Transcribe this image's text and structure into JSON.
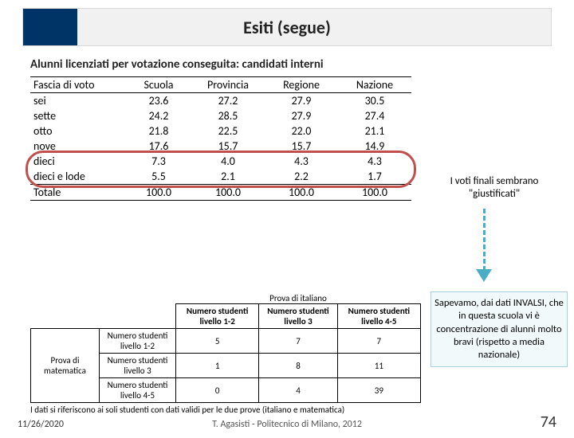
{
  "title": "Esiti (segue)",
  "subhead": "Alunni licenziati per votazione conseguita: candidati interni",
  "table1": {
    "headers": [
      "Fascia di voto",
      "Scuola",
      "Provincia",
      "Regione",
      "Nazione"
    ],
    "rows": [
      {
        "label": "sei",
        "vals": [
          "23.6",
          "27.2",
          "27.9",
          "30.5"
        ]
      },
      {
        "label": "sette",
        "vals": [
          "24.2",
          "28.5",
          "27.9",
          "27.4"
        ]
      },
      {
        "label": "otto",
        "vals": [
          "21.8",
          "22.5",
          "22.0",
          "21.1"
        ]
      },
      {
        "label": "nove",
        "vals": [
          "17.6",
          "15.7",
          "15.7",
          "14.9"
        ]
      },
      {
        "label": "dieci",
        "vals": [
          "7.3",
          "4.0",
          "4.3",
          "4.3"
        ]
      },
      {
        "label": "dieci e lode",
        "vals": [
          "5.5",
          "2.1",
          "2.2",
          "1.7"
        ]
      },
      {
        "label": "Totale",
        "vals": [
          "100.0",
          "100.0",
          "100.0",
          "100.0"
        ]
      }
    ],
    "highlight_rows": [
      4,
      5
    ],
    "highlight_color": "#c0504d"
  },
  "note1_lines": [
    "I voti finali sembrano",
    "\"giustificati\""
  ],
  "arrow_color": "#4bacc6",
  "table2": {
    "top_group": "Prova di italiano",
    "col_headers": [
      "Numero studenti livello 1-2",
      "Numero studenti livello 3",
      "Numero studenti livello 4-5"
    ],
    "side_group": "Prova di matematica",
    "row_headers": [
      "Numero studenti livello 1-2",
      "Numero studenti livello 3",
      "Numero studenti livello 4-5"
    ],
    "cells": [
      [
        "5",
        "7",
        "7"
      ],
      [
        "1",
        "8",
        "11"
      ],
      [
        "0",
        "4",
        "39"
      ]
    ],
    "caption": "I dati si riferiscono ai soli studenti con dati validi per le due prove (italiano e matematica)"
  },
  "note2": "Sapevamo, dai dati INVALSI, che in questa scuola vi è concentrazione di alunni molto bravi (rispetto a media nazionale)",
  "footer": {
    "date": "11/26/2020",
    "center": "T. Agasisti - Politecnico di Milano, 2012",
    "page": "74"
  },
  "style": {
    "title_bg": "#f1f1f1",
    "title_accent": "#003366",
    "note2_bg": "#f2f9fb",
    "note2_border": "#a6d0de"
  }
}
